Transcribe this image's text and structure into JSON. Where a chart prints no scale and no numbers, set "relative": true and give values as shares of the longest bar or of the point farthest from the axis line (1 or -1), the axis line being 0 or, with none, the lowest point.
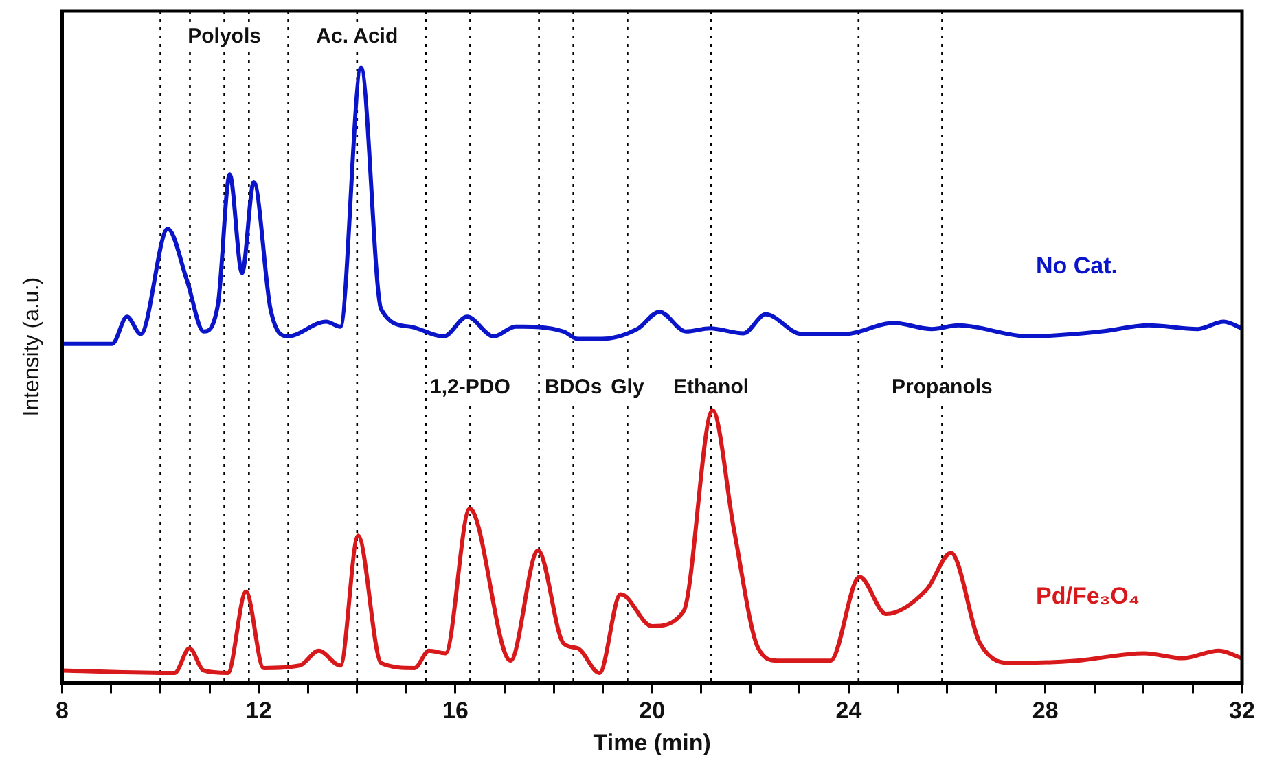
{
  "chart_data": {
    "type": "line",
    "relative": true,
    "xlabel": "Time (min)",
    "ylabel": "Intensity (a.u.)",
    "xlim": [
      8,
      32
    ],
    "xticks": [
      8,
      {
        "value": 9,
        "label": null
      },
      {
        "value": 10,
        "label": null
      },
      {
        "value": 11,
        "label": null
      },
      12,
      {
        "value": 13,
        "label": null
      },
      {
        "value": 14,
        "label": null
      },
      {
        "value": 15,
        "label": null
      },
      16,
      {
        "value": 17,
        "label": null
      },
      {
        "value": 18,
        "label": null
      },
      {
        "value": 19,
        "label": null
      },
      20,
      {
        "value": 21,
        "label": null
      },
      {
        "value": 22,
        "label": null
      },
      {
        "value": 23,
        "label": null
      },
      24,
      {
        "value": 25,
        "label": null
      },
      {
        "value": 26,
        "label": null
      },
      {
        "value": 27,
        "label": null
      },
      28,
      {
        "value": 29,
        "label": null
      },
      {
        "value": 30,
        "label": null
      },
      {
        "value": 31,
        "label": null
      },
      32
    ],
    "grid": false,
    "legend": false,
    "marker": "none",
    "line_style": "solid",
    "series": [
      {
        "name": "No Cat.",
        "color": "#0a14c8",
        "x": [
          8,
          9.02,
          9.32,
          9.6,
          10.15,
          10.54,
          10.88,
          11.17,
          11.41,
          11.66,
          11.9,
          12.24,
          12.59,
          13.37,
          13.66,
          14.08,
          14.49,
          15.07,
          15.76,
          16.24,
          16.78,
          17.22,
          18.2,
          18.49,
          18.98,
          19.7,
          20.15,
          20.69,
          21.18,
          21.86,
          22.31,
          23.04,
          23.93,
          24.91,
          25.69,
          26.23,
          27.65,
          29.13,
          30.1,
          31.1,
          31.63,
          32
        ],
        "values": [
          0.551,
          0.551,
          0.595,
          0.567,
          0.738,
          0.654,
          0.571,
          0.615,
          0.826,
          0.666,
          0.814,
          0.607,
          0.563,
          0.587,
          0.579,
          1.0,
          0.607,
          0.579,
          0.563,
          0.595,
          0.563,
          0.579,
          0.571,
          0.559,
          0.559,
          0.575,
          0.603,
          0.571,
          0.576,
          0.568,
          0.599,
          0.567,
          0.567,
          0.585,
          0.575,
          0.581,
          0.563,
          0.571,
          0.581,
          0.575,
          0.587,
          0.576
        ]
      },
      {
        "name": "Pd/Fe₃O₄",
        "color": "#d7191c",
        "x": [
          8,
          10.29,
          10.59,
          10.88,
          11.37,
          11.74,
          12.1,
          12.83,
          13.22,
          13.66,
          14.02,
          14.49,
          15.17,
          15.46,
          15.8,
          16.29,
          17.12,
          17.68,
          18.2,
          18.49,
          18.93,
          19.36,
          20,
          20.64,
          21.23,
          21.67,
          22.16,
          22.55,
          23.63,
          24.22,
          24.76,
          25.59,
          26.08,
          26.67,
          27.35,
          28.64,
          30.01,
          30.79,
          31.53,
          32
        ],
        "values": [
          0.02,
          0.016,
          0.056,
          0.02,
          0.016,
          0.148,
          0.024,
          0.028,
          0.052,
          0.028,
          0.239,
          0.032,
          0.024,
          0.052,
          0.048,
          0.283,
          0.036,
          0.215,
          0.064,
          0.056,
          0.016,
          0.144,
          0.092,
          0.116,
          0.443,
          0.247,
          0.056,
          0.036,
          0.036,
          0.172,
          0.112,
          0.152,
          0.211,
          0.064,
          0.032,
          0.036,
          0.048,
          0.04,
          0.052,
          0.04
        ]
      }
    ],
    "ref_lines": [
      {
        "axis": "x",
        "value": 10.0,
        "line_style": "dotted"
      },
      {
        "axis": "x",
        "value": 10.6,
        "line_style": "dotted"
      },
      {
        "axis": "x",
        "value": 11.3,
        "line_style": "dotted"
      },
      {
        "axis": "x",
        "value": 11.8,
        "line_style": "dotted"
      },
      {
        "axis": "x",
        "value": 12.6,
        "line_style": "dotted"
      },
      {
        "axis": "x",
        "value": 14.0,
        "line_style": "dotted"
      },
      {
        "axis": "x",
        "value": 15.4,
        "line_style": "dotted"
      },
      {
        "axis": "x",
        "value": 16.3,
        "line_style": "dotted"
      },
      {
        "axis": "x",
        "value": 17.7,
        "line_style": "dotted"
      },
      {
        "axis": "x",
        "value": 18.4,
        "line_style": "dotted"
      },
      {
        "axis": "x",
        "value": 19.5,
        "line_style": "dotted"
      },
      {
        "axis": "x",
        "value": 21.2,
        "line_style": "dotted"
      },
      {
        "axis": "x",
        "value": 24.2,
        "line_style": "dotted"
      },
      {
        "axis": "x",
        "value": 25.9,
        "line_style": "dotted"
      }
    ],
    "annotations": [
      {
        "text": "Polyols",
        "x": 11.3,
        "y": 1.05
      },
      {
        "text": "Ac. Acid",
        "x": 14.0,
        "y": 1.05
      },
      {
        "text": "1,2-PDO",
        "x": 16.3,
        "y": 0.48
      },
      {
        "text": "BDOs",
        "x": 18.4,
        "y": 0.48
      },
      {
        "text": "Gly",
        "x": 19.5,
        "y": 0.48
      },
      {
        "text": "Ethanol",
        "x": 21.2,
        "y": 0.48
      },
      {
        "text": "Propanols",
        "x": 25.9,
        "y": 0.48
      }
    ]
  }
}
